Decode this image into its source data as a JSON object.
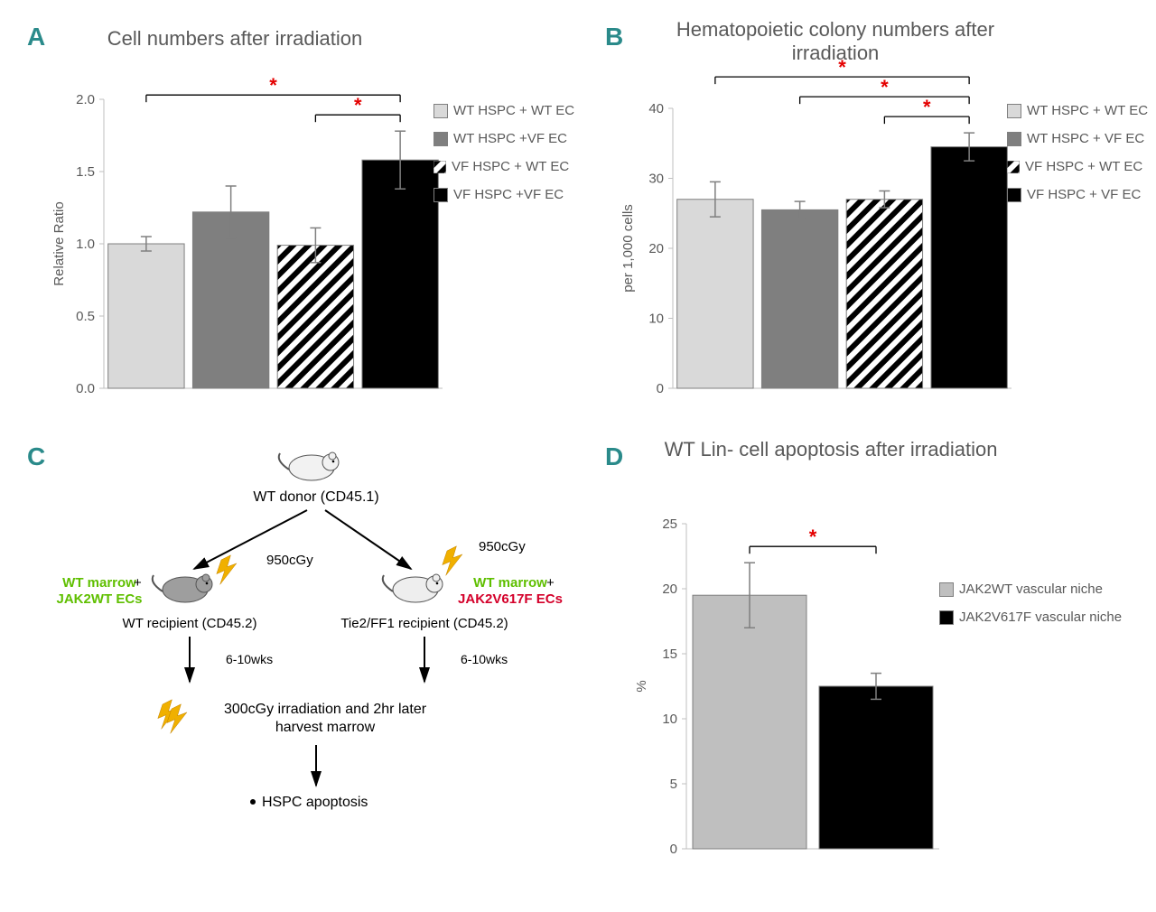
{
  "panelA": {
    "letter": "A",
    "title": "Cell numbers after irradiation",
    "y_label": "Relative Ratio",
    "y_ticks": [
      0.0,
      0.5,
      1.0,
      1.5,
      2.0
    ],
    "x_categories": [
      "WT HSPC + WT EC",
      "WT HSPC +VF EC",
      "VF HSPC + WT EC",
      "VF HSPC +VF EC"
    ],
    "values": [
      1.0,
      1.22,
      0.99,
      1.58
    ],
    "err": [
      0.05,
      0.18,
      0.12,
      0.2
    ],
    "fills": [
      "#d9d9d9",
      "#7f7f7f",
      "hatch",
      "#000000"
    ],
    "legend_fills": [
      "#d9d9d9",
      "#7f7f7f",
      "hatch",
      "#000000"
    ],
    "legend_labels": [
      "WT HSPC + WT EC",
      "WT HSPC +VF EC",
      "VF HSPC + WT EC",
      "VF HSPC +VF EC"
    ],
    "sig_pairs": [
      [
        0,
        3
      ],
      [
        2,
        3
      ]
    ],
    "y_domain": [
      0,
      2.0
    ]
  },
  "panelB": {
    "letter": "B",
    "title": "Hematopoietic colony numbers after irradiation",
    "y_label": "per 1,000 cells",
    "y_ticks": [
      0,
      10,
      20,
      30,
      40
    ],
    "x_categories": [
      "WT HSPC + WT EC",
      "WT HSPC + VF EC",
      "VF HSPC + WT EC",
      "VF HSPC + VF EC"
    ],
    "values": [
      27,
      25.5,
      27,
      34.5
    ],
    "err": [
      2.5,
      1.2,
      1.2,
      2.0
    ],
    "fills": [
      "#d9d9d9",
      "#7f7f7f",
      "hatch",
      "#000000"
    ],
    "legend_fills": [
      "#d9d9d9",
      "#7f7f7f",
      "hatch",
      "#000000"
    ],
    "legend_labels": [
      "WT HSPC + WT EC",
      "WT HSPC + VF EC",
      "VF HSPC + WT EC",
      "VF HSPC + VF EC"
    ],
    "sig_pairs": [
      [
        0,
        3
      ],
      [
        1,
        3
      ],
      [
        2,
        3
      ]
    ],
    "y_domain": [
      0,
      40
    ]
  },
  "panelC": {
    "letter": "C",
    "donor_label": "WT donor (CD45.1)",
    "dose_top": "950cGy",
    "left_marrow": "WT marrow",
    "left_ec": "JAK2WT ECs",
    "left_recipient": "WT recipient (CD45.2)",
    "right_marrow": "WT marrow",
    "right_ec": "JAK2V617F ECs",
    "right_recipient": "Tie2/FF1 recipient (CD45.2)",
    "weeks": "6-10wks",
    "irradiation_step": "300cGy irradiation and 2hr later harvest marrow",
    "final_step": "HSPC apoptosis",
    "colors": {
      "green": "#5fbf00",
      "red": "#d4002a",
      "black": "#000000",
      "bolt": "#f0b000"
    }
  },
  "panelD": {
    "letter": "D",
    "title": "WT Lin- cell apoptosis after irradiation",
    "y_label": "%",
    "y_ticks": [
      0,
      5,
      10,
      15,
      20,
      25
    ],
    "x_categories": [
      "JAK2WT vascular niche",
      "JAK2V617F vascular niche"
    ],
    "values": [
      19.5,
      12.5
    ],
    "err": [
      2.5,
      1.0
    ],
    "fills": [
      "#bfbfbf",
      "#000000"
    ],
    "legend_fills": [
      "#bfbfbf",
      "#000000"
    ],
    "legend_labels": [
      "JAK2WT vascular niche",
      "JAK2V617F vascular niche"
    ],
    "sig_pairs": [
      [
        0,
        1
      ]
    ],
    "y_domain": [
      0,
      25
    ]
  },
  "style": {
    "bar_stroke": "#7f7f7f",
    "err_stroke": "#7f7f7f",
    "axis_stroke": "#bfbfbf",
    "tick_color": "#595959",
    "title_color": "#595959"
  }
}
